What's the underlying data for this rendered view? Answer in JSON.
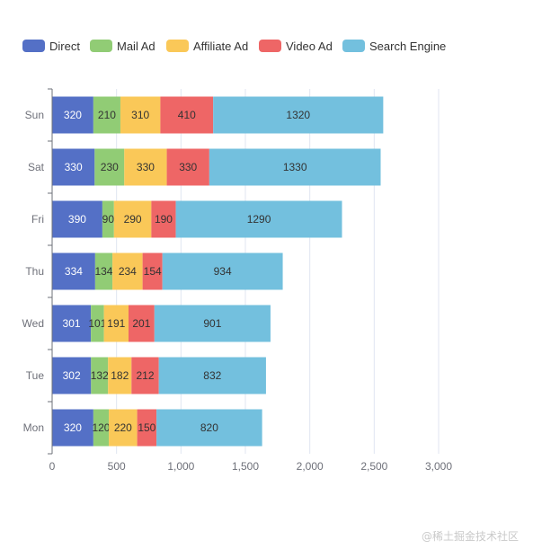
{
  "chart_data": {
    "type": "bar",
    "orientation": "horizontal",
    "stacked": true,
    "categories": [
      "Mon",
      "Tue",
      "Wed",
      "Thu",
      "Fri",
      "Sat",
      "Sun"
    ],
    "series": [
      {
        "name": "Direct",
        "color": "#5470c6",
        "values": [
          320,
          302,
          301,
          334,
          390,
          330,
          320
        ]
      },
      {
        "name": "Mail Ad",
        "color": "#91cc75",
        "values": [
          120,
          132,
          101,
          134,
          90,
          230,
          210
        ]
      },
      {
        "name": "Affiliate Ad",
        "color": "#fac858",
        "values": [
          220,
          182,
          191,
          234,
          290,
          330,
          310
        ]
      },
      {
        "name": "Video Ad",
        "color": "#ee6666",
        "values": [
          150,
          212,
          201,
          154,
          190,
          330,
          410
        ]
      },
      {
        "name": "Search Engine",
        "color": "#73c0de",
        "values": [
          820,
          832,
          901,
          934,
          1290,
          1330,
          1320
        ]
      }
    ],
    "xlim": [
      0,
      3000
    ],
    "x_ticks": [
      "0",
      "500",
      "1,000",
      "1,500",
      "2,000",
      "2,500",
      "3,000"
    ],
    "grid": true,
    "legend_position": "top-left",
    "data_labels": true
  },
  "watermark": "@稀土掘金技术社区"
}
